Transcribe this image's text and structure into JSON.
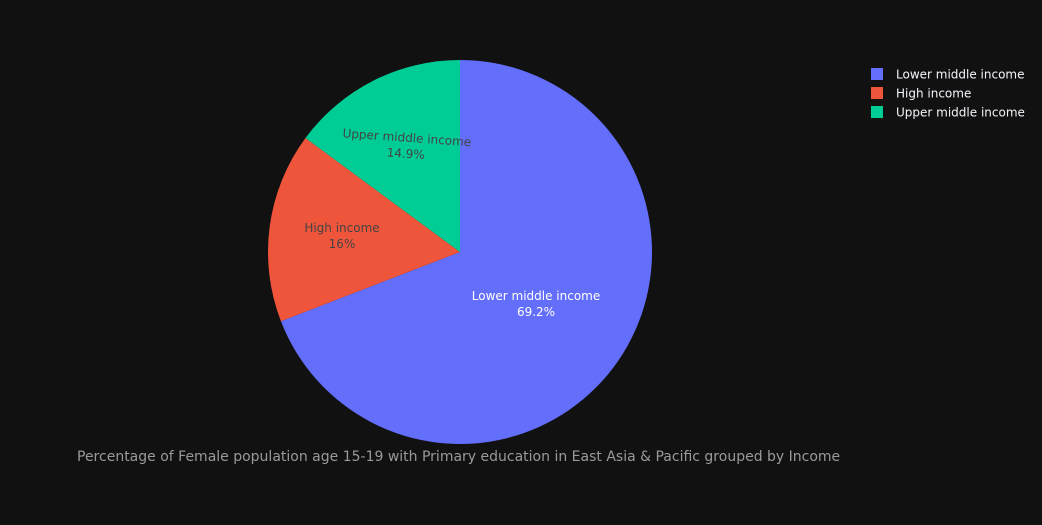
{
  "chart_data": {
    "type": "pie",
    "title": "Percentage of Female population age 15-19 with Primary education in East Asia & Pacific grouped by Income",
    "legend_position": "top-right",
    "slices": [
      {
        "name": "Lower middle income",
        "value": 69.2,
        "label": "69.2%",
        "color": "#636efa",
        "label_color": "#ffffff"
      },
      {
        "name": "High income",
        "value": 16.0,
        "label": "16%",
        "color": "#ef553b",
        "label_color": "#444444"
      },
      {
        "name": "Upper middle income",
        "value": 14.9,
        "label": "14.9%",
        "color": "#00cc96",
        "label_color": "#444444"
      }
    ]
  }
}
